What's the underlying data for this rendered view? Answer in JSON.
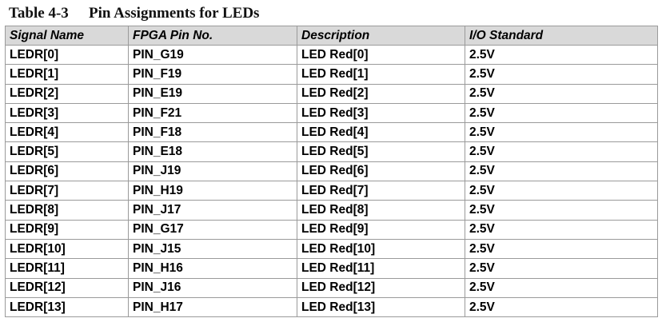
{
  "caption": {
    "number": "Table 4-3",
    "title": "Pin Assignments for LEDs"
  },
  "table": {
    "headers": [
      "Signal Name",
      "FPGA Pin No.",
      "Description",
      "I/O Standard"
    ],
    "rows": [
      [
        "LEDR[0]",
        "PIN_G19",
        "LED Red[0]",
        "2.5V"
      ],
      [
        "LEDR[1]",
        "PIN_F19",
        "LED Red[1]",
        "2.5V"
      ],
      [
        "LEDR[2]",
        "PIN_E19",
        "LED Red[2]",
        "2.5V"
      ],
      [
        "LEDR[3]",
        "PIN_F21",
        "LED Red[3]",
        "2.5V"
      ],
      [
        "LEDR[4]",
        "PIN_F18",
        "LED Red[4]",
        "2.5V"
      ],
      [
        "LEDR[5]",
        "PIN_E18",
        "LED Red[5]",
        "2.5V"
      ],
      [
        "LEDR[6]",
        "PIN_J19",
        "LED Red[6]",
        "2.5V"
      ],
      [
        "LEDR[7]",
        "PIN_H19",
        "LED Red[7]",
        "2.5V"
      ],
      [
        "LEDR[8]",
        "PIN_J17",
        "LED Red[8]",
        "2.5V"
      ],
      [
        "LEDR[9]",
        "PIN_G17",
        "LED Red[9]",
        "2.5V"
      ],
      [
        "LEDR[10]",
        "PIN_J15",
        "LED Red[10]",
        "2.5V"
      ],
      [
        "LEDR[11]",
        "PIN_H16",
        "LED Red[11]",
        "2.5V"
      ],
      [
        "LEDR[12]",
        "PIN_J16",
        "LED Red[12]",
        "2.5V"
      ],
      [
        "LEDR[13]",
        "PIN_H17",
        "LED Red[13]",
        "2.5V"
      ]
    ]
  }
}
